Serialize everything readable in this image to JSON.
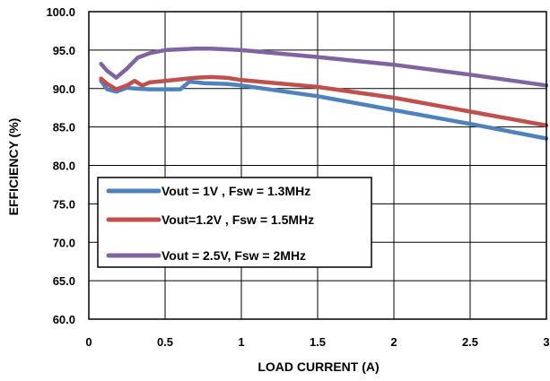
{
  "chart_data": {
    "type": "line",
    "xlabel": "LOAD CURRENT (A)",
    "ylabel": "EFFICIENCY (%)",
    "xlim": [
      0,
      3
    ],
    "ylim": [
      60,
      100
    ],
    "x_ticks": [
      "0",
      "0.5",
      "1",
      "1.5",
      "2",
      "2.5",
      "3"
    ],
    "y_ticks": [
      "60.0",
      "65.0",
      "70.0",
      "75.0",
      "80.0",
      "85.0",
      "90.0",
      "95.0",
      "100.0"
    ],
    "grid": "horizontal and vertical",
    "legend_position": "lower-left",
    "series": [
      {
        "name": "Vout = 1V , Fsw = 1.3MHz",
        "color": "#4F81BD",
        "x": [
          0.08,
          0.12,
          0.18,
          0.25,
          0.3,
          0.4,
          0.5,
          0.6,
          0.66,
          0.75,
          0.9,
          1.0,
          1.5,
          2.0,
          2.5,
          3.0
        ],
        "y": [
          91.0,
          89.9,
          89.6,
          90.1,
          90.0,
          89.9,
          89.9,
          89.9,
          90.9,
          90.7,
          90.6,
          90.4,
          89.0,
          87.2,
          85.4,
          83.5
        ]
      },
      {
        "name": "Vout=1.2V , Fsw = 1.5MHz",
        "color": "#C0504D",
        "x": [
          0.08,
          0.12,
          0.18,
          0.25,
          0.3,
          0.35,
          0.4,
          0.5,
          0.6,
          0.7,
          0.8,
          0.9,
          1.0,
          1.5,
          2.0,
          2.5,
          3.0
        ],
        "y": [
          91.3,
          90.6,
          89.9,
          90.4,
          91.0,
          90.4,
          90.8,
          91.0,
          91.2,
          91.4,
          91.5,
          91.4,
          91.1,
          90.2,
          88.8,
          87.0,
          85.2
        ]
      },
      {
        "name": "Vout = 2.5V, Fsw = 2MHz",
        "color": "#8064A2",
        "x": [
          0.08,
          0.12,
          0.18,
          0.25,
          0.32,
          0.4,
          0.5,
          0.6,
          0.7,
          0.8,
          0.9,
          1.0,
          1.5,
          2.0,
          2.5,
          3.0
        ],
        "y": [
          93.2,
          92.3,
          91.4,
          92.6,
          94.0,
          94.6,
          95.0,
          95.1,
          95.2,
          95.2,
          95.1,
          95.0,
          94.1,
          93.1,
          91.8,
          90.4
        ]
      }
    ]
  }
}
